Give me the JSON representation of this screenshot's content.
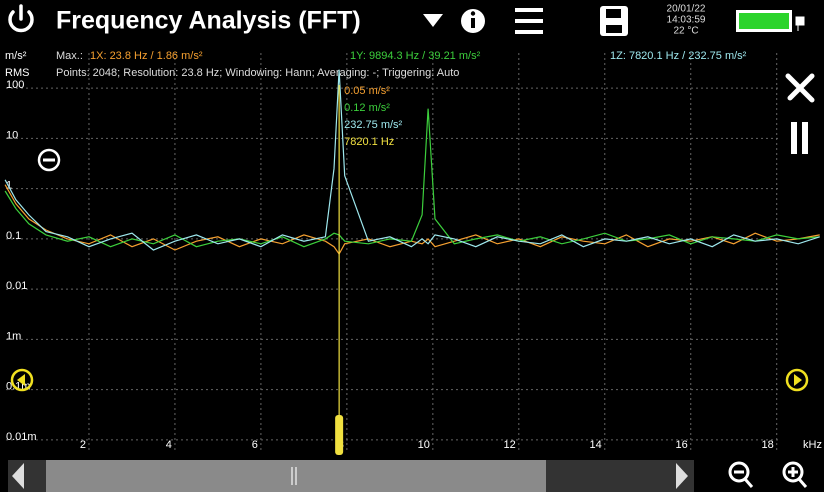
{
  "header": {
    "title": "Frequency Analysis (FFT)",
    "date": "20/01/22",
    "time": "14:03:59",
    "temperature": "22 °C"
  },
  "chart_data": {
    "type": "line",
    "y_unit": "m/s²",
    "y_label": "RMS",
    "x_unit": "kHz",
    "max_label": "Max.:",
    "info": "Points: 2048; Resolution: 23.8 Hz; Windowing: Hann; Averaging: -; Triggering: Auto",
    "log_y": true,
    "grid": true,
    "xlim": [
      0,
      19.1
    ],
    "ylim": [
      5e-06,
      630
    ],
    "xticks": [
      2,
      4,
      6,
      8,
      10,
      12,
      14,
      16,
      18
    ],
    "yticks": [
      100,
      10,
      1,
      0.1,
      0.01,
      {
        "value": 0.001,
        "label": "1m"
      },
      {
        "value": 0.0001,
        "label": "0.1m"
      },
      {
        "value": 1e-05,
        "label": "0.01m"
      }
    ],
    "x": [
      0.05,
      0.3,
      0.6,
      1,
      1.5,
      2,
      2.5,
      3,
      3.5,
      4,
      4.5,
      5,
      5.5,
      6,
      6.5,
      7,
      7.5,
      7.7,
      7.82,
      7.95,
      8.5,
      9,
      9.5,
      9.75,
      9.89,
      10.05,
      10.5,
      11,
      11.5,
      12,
      12.5,
      13,
      13.5,
      14,
      14.5,
      15,
      15.5,
      16,
      16.5,
      17,
      17.5,
      18,
      18.5,
      19
    ],
    "series": [
      {
        "name": "1X: 23.8 Hz / 1.86 m/s²",
        "color": "#f5a030",
        "values": [
          1.2,
          0.5,
          0.25,
          0.15,
          0.1,
          0.08,
          0.12,
          0.07,
          0.1,
          0.06,
          0.09,
          0.11,
          0.07,
          0.1,
          0.08,
          0.12,
          0.09,
          0.07,
          0.05,
          0.08,
          0.1,
          0.07,
          0.09,
          0.08,
          0.1,
          0.07,
          0.09,
          0.12,
          0.08,
          0.1,
          0.07,
          0.11,
          0.09,
          0.08,
          0.12,
          0.07,
          0.1,
          0.09,
          0.11,
          0.08,
          0.13,
          0.09,
          0.1,
          0.12
        ]
      },
      {
        "name": "1Y: 9894.3 Hz / 39.21 m/s²",
        "color": "#3ccf3c",
        "values": [
          0.9,
          0.4,
          0.2,
          0.12,
          0.09,
          0.11,
          0.07,
          0.1,
          0.08,
          0.12,
          0.07,
          0.09,
          0.1,
          0.08,
          0.11,
          0.07,
          0.1,
          0.13,
          0.12,
          0.09,
          0.08,
          0.1,
          0.09,
          0.3,
          39.21,
          0.25,
          0.08,
          0.1,
          0.12,
          0.09,
          0.11,
          0.08,
          0.1,
          0.13,
          0.09,
          0.1,
          0.12,
          0.08,
          0.11,
          0.1,
          0.09,
          0.12,
          0.1,
          0.11
        ]
      },
      {
        "name": "1Z: 7820.1 Hz / 232.75 m/s²",
        "color": "#9ee8ee",
        "values": [
          1.5,
          0.6,
          0.3,
          0.14,
          0.11,
          0.07,
          0.1,
          0.13,
          0.06,
          0.09,
          0.12,
          0.08,
          0.1,
          0.07,
          0.12,
          0.09,
          0.11,
          2.5,
          232.75,
          1.8,
          0.09,
          0.11,
          0.07,
          0.1,
          0.08,
          0.12,
          0.1,
          0.07,
          0.11,
          0.09,
          0.08,
          0.12,
          0.07,
          0.1,
          0.09,
          0.11,
          0.08,
          0.1,
          0.07,
          0.12,
          0.09,
          0.1,
          0.08,
          0.11
        ]
      }
    ],
    "cursor": {
      "index": 18,
      "x_label": "7820.1 Hz",
      "color": "#f0e040",
      "readouts": [
        "0.05 m/s²",
        "0.12 m/s²",
        "232.75 m/s²"
      ]
    }
  }
}
